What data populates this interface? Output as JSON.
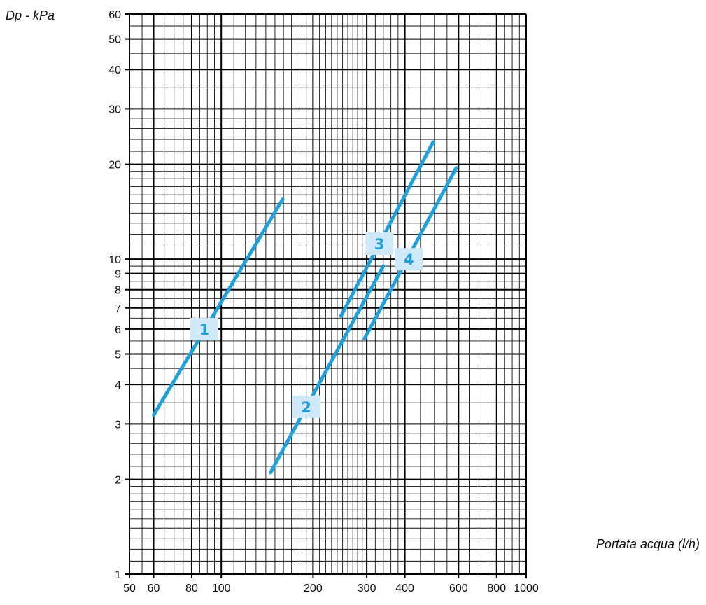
{
  "chart_data": {
    "type": "line",
    "title": "",
    "xlabel": "Portata acqua (l/h)",
    "ylabel": "Dp - kPa",
    "xscale": "log",
    "yscale": "log",
    "xlim": [
      50,
      1000
    ],
    "ylim": [
      1,
      60
    ],
    "grid": true,
    "x_tick_labels": [
      "50",
      "60",
      "80",
      "100",
      "200",
      "300",
      "400",
      "600",
      "800",
      "1000"
    ],
    "y_tick_labels": [
      "1",
      "2",
      "3",
      "4",
      "5",
      "6",
      "7",
      "8",
      "9",
      "10",
      "20",
      "30",
      "40",
      "50",
      "60"
    ],
    "series": [
      {
        "name": "1",
        "color": "#1fa0dc",
        "x": [
          60,
          159
        ],
        "y": [
          3.2,
          15.5
        ]
      },
      {
        "name": "2",
        "color": "#1fa0dc",
        "x": [
          145,
          340
        ],
        "y": [
          2.1,
          9.5
        ]
      },
      {
        "name": "3",
        "color": "#1fa0dc",
        "x": [
          247,
          495
        ],
        "y": [
          6.6,
          23.5
        ]
      },
      {
        "name": "4",
        "color": "#1fa0dc",
        "x": [
          295,
          590
        ],
        "y": [
          5.6,
          19.5
        ]
      }
    ],
    "badge_color": "#cfe9f9",
    "annotations": [
      {
        "text": "1",
        "x": 88,
        "y": 6.0
      },
      {
        "text": "2",
        "x": 190,
        "y": 3.4
      },
      {
        "text": "3",
        "x": 330,
        "y": 11.2
      },
      {
        "text": "4",
        "x": 412,
        "y": 10.0
      }
    ]
  }
}
